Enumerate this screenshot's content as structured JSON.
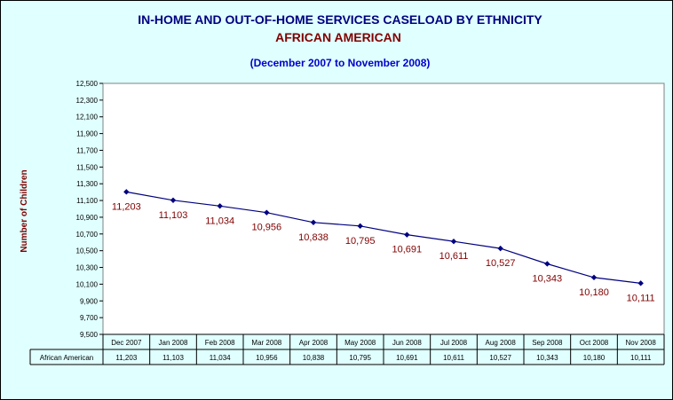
{
  "chart_data": {
    "type": "line",
    "title": "IN-HOME AND OUT-OF-HOME SERVICES CASELOAD BY ETHNICITY",
    "subtitle": "AFRICAN AMERICAN",
    "period": "(December 2007 to November 2008)",
    "ylabel": "Number of Children",
    "xlabel": "",
    "ylim": [
      9500,
      12500
    ],
    "ytick_step": 200,
    "categories": [
      "Dec 2007",
      "Jan 2008",
      "Feb 2008",
      "Mar 2008",
      "Apr 2008",
      "May 2008",
      "Jun 2008",
      "Jul 2008",
      "Aug 2008",
      "Sep 2008",
      "Oct 2008",
      "Nov 2008"
    ],
    "series": [
      {
        "name": "African American",
        "values": [
          11203,
          11103,
          11034,
          10956,
          10838,
          10795,
          10691,
          10611,
          10527,
          10343,
          10180,
          10111
        ],
        "labels": [
          "11,203",
          "11,103",
          "11,034",
          "10,956",
          "10,838",
          "10,795",
          "10,691",
          "10,611",
          "10,527",
          "10,343",
          "10,180",
          "10,111"
        ],
        "color": "#000080"
      }
    ],
    "grid": false,
    "legend": "data table below chart",
    "colors": {
      "background": "#e0ffff",
      "plot": "#ffffff",
      "line": "#000080",
      "labels": "#800000",
      "title": "#000080",
      "subtitle": "#800000",
      "period": "#0000cc"
    }
  }
}
